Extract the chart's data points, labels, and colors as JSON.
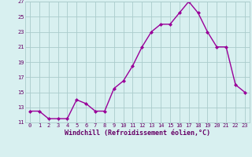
{
  "hours": [
    0,
    1,
    2,
    3,
    4,
    5,
    6,
    7,
    8,
    9,
    10,
    11,
    12,
    13,
    14,
    15,
    16,
    17,
    18,
    19,
    20,
    21,
    22,
    23
  ],
  "values": [
    12.5,
    12.5,
    11.5,
    11.5,
    11.5,
    14.0,
    13.5,
    12.5,
    12.5,
    15.5,
    16.5,
    18.5,
    21.0,
    23.0,
    24.0,
    24.0,
    25.5,
    27.0,
    25.5,
    23.0,
    21.0,
    21.0,
    16.0,
    15.0
  ],
  "line_color": "#990099",
  "marker": "D",
  "marker_size": 2.0,
  "bg_color": "#d8f0f0",
  "grid_color": "#aacccc",
  "xlabel": "Windchill (Refroidissement éolien,°C)",
  "ylim": [
    11,
    27
  ],
  "yticks": [
    11,
    13,
    15,
    17,
    19,
    21,
    23,
    25,
    27
  ],
  "xticks": [
    0,
    1,
    2,
    3,
    4,
    5,
    6,
    7,
    8,
    9,
    10,
    11,
    12,
    13,
    14,
    15,
    16,
    17,
    18,
    19,
    20,
    21,
    22,
    23
  ],
  "xlabel_color": "#660066",
  "tick_color": "#660066",
  "line_width": 1.0,
  "tick_fontsize": 5.0,
  "xlabel_fontsize": 6.0
}
